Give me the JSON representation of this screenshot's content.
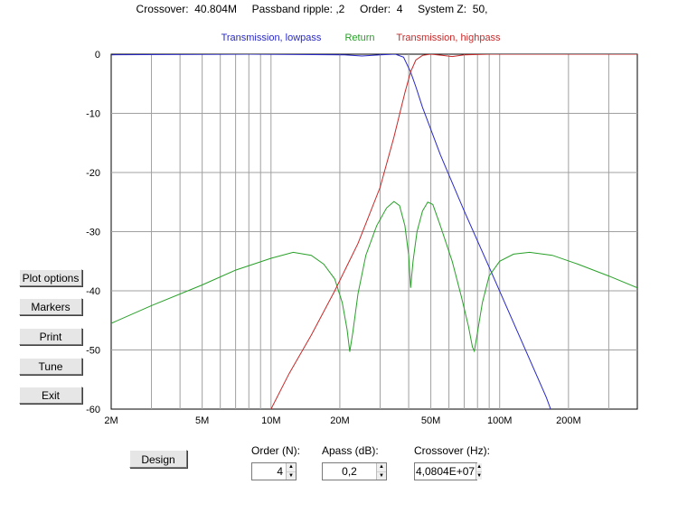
{
  "header": {
    "crossover_label": "Crossover:",
    "crossover_value": "40.804M",
    "ripple_label": "Passband ripple:",
    "ripple_value": ",2",
    "order_label": "Order:",
    "order_value": "4",
    "system_label": "System Z:",
    "system_value": "50,"
  },
  "sidebar": {
    "buttons": [
      "Plot options",
      "Markers",
      "Print",
      "Tune",
      "Exit"
    ]
  },
  "controls": {
    "design_label": "Design",
    "order_label": "Order (N):",
    "order_value": "4",
    "apass_label": "Apass (dB):",
    "apass_value": "0,2",
    "crossover_label": "Crossover (Hz):",
    "crossover_value": "4,0804E+07"
  },
  "chart_data": {
    "type": "line",
    "x_scale": "log",
    "xlim": [
      2000000,
      400000000
    ],
    "ylim": [
      -60,
      0
    ],
    "grid": true,
    "x_ticks": [
      {
        "value": 2000000,
        "label": "2M"
      },
      {
        "value": 5000000,
        "label": "5M"
      },
      {
        "value": 10000000,
        "label": "10M"
      },
      {
        "value": 20000000,
        "label": "20M"
      },
      {
        "value": 50000000,
        "label": "50M"
      },
      {
        "value": 100000000,
        "label": "100M"
      },
      {
        "value": 200000000,
        "label": "200M"
      }
    ],
    "y_ticks": [
      {
        "value": 0,
        "label": "0"
      },
      {
        "value": -10,
        "label": "-10"
      },
      {
        "value": -20,
        "label": "-20"
      },
      {
        "value": -30,
        "label": "-30"
      },
      {
        "value": -40,
        "label": "-40"
      },
      {
        "value": -50,
        "label": "-50"
      },
      {
        "value": -60,
        "label": "-60"
      }
    ],
    "series": [
      {
        "name": "Transmission, lowpass",
        "color": "#2828c8",
        "points": [
          [
            2000000,
            -0.1
          ],
          [
            8000000,
            0
          ],
          [
            21000000,
            -0.1
          ],
          [
            25000000,
            -0.3
          ],
          [
            30000000,
            -0.1
          ],
          [
            35000000,
            0
          ],
          [
            38000000,
            -0.5
          ],
          [
            40800000,
            -3
          ],
          [
            43000000,
            -5.5
          ],
          [
            46000000,
            -9
          ],
          [
            55000000,
            -17
          ],
          [
            70000000,
            -26.5
          ],
          [
            90000000,
            -36
          ],
          [
            120000000,
            -47
          ],
          [
            160000000,
            -58
          ],
          [
            167000000,
            -60
          ]
        ]
      },
      {
        "name": "Return",
        "color": "#28a028",
        "points": [
          [
            2000000,
            -45.5
          ],
          [
            3000000,
            -42.5
          ],
          [
            5000000,
            -39
          ],
          [
            7000000,
            -36.5
          ],
          [
            10000000,
            -34.5
          ],
          [
            12500000,
            -33.5
          ],
          [
            15000000,
            -34
          ],
          [
            17000000,
            -35.5
          ],
          [
            19000000,
            -38
          ],
          [
            20500000,
            -42
          ],
          [
            21500000,
            -46.5
          ],
          [
            22100000,
            -50.3
          ],
          [
            22800000,
            -47
          ],
          [
            24000000,
            -40.5
          ],
          [
            26000000,
            -34
          ],
          [
            29000000,
            -29
          ],
          [
            32000000,
            -26
          ],
          [
            34500000,
            -24.9
          ],
          [
            36500000,
            -25.6
          ],
          [
            38500000,
            -29
          ],
          [
            40000000,
            -34
          ],
          [
            40800000,
            -39.5
          ],
          [
            41800000,
            -35
          ],
          [
            43500000,
            -30
          ],
          [
            46000000,
            -26.5
          ],
          [
            48500000,
            -25
          ],
          [
            51000000,
            -25.4
          ],
          [
            55000000,
            -29
          ],
          [
            62000000,
            -35
          ],
          [
            68000000,
            -41
          ],
          [
            73000000,
            -46
          ],
          [
            76000000,
            -49.5
          ],
          [
            77500000,
            -50.2
          ],
          [
            80000000,
            -47
          ],
          [
            84000000,
            -42
          ],
          [
            90000000,
            -37.5
          ],
          [
            100000000,
            -35
          ],
          [
            115000000,
            -33.8
          ],
          [
            135000000,
            -33.5
          ],
          [
            170000000,
            -34
          ],
          [
            220000000,
            -35.5
          ],
          [
            300000000,
            -37.5
          ],
          [
            400000000,
            -39.5
          ]
        ]
      },
      {
        "name": "Transmission, highpass",
        "color": "#c82828",
        "points": [
          [
            10000000,
            -60
          ],
          [
            12000000,
            -54
          ],
          [
            15000000,
            -47.5
          ],
          [
            19000000,
            -40
          ],
          [
            24000000,
            -32
          ],
          [
            30000000,
            -22.5
          ],
          [
            34500000,
            -14
          ],
          [
            38500000,
            -6.5
          ],
          [
            40800000,
            -3
          ],
          [
            43000000,
            -1
          ],
          [
            46000000,
            -0.2
          ],
          [
            50000000,
            0
          ],
          [
            56000000,
            -0.2
          ],
          [
            62000000,
            -0.4
          ],
          [
            70000000,
            -0.1
          ],
          [
            90000000,
            0
          ],
          [
            300000000,
            0
          ],
          [
            400000000,
            0
          ]
        ]
      }
    ]
  }
}
